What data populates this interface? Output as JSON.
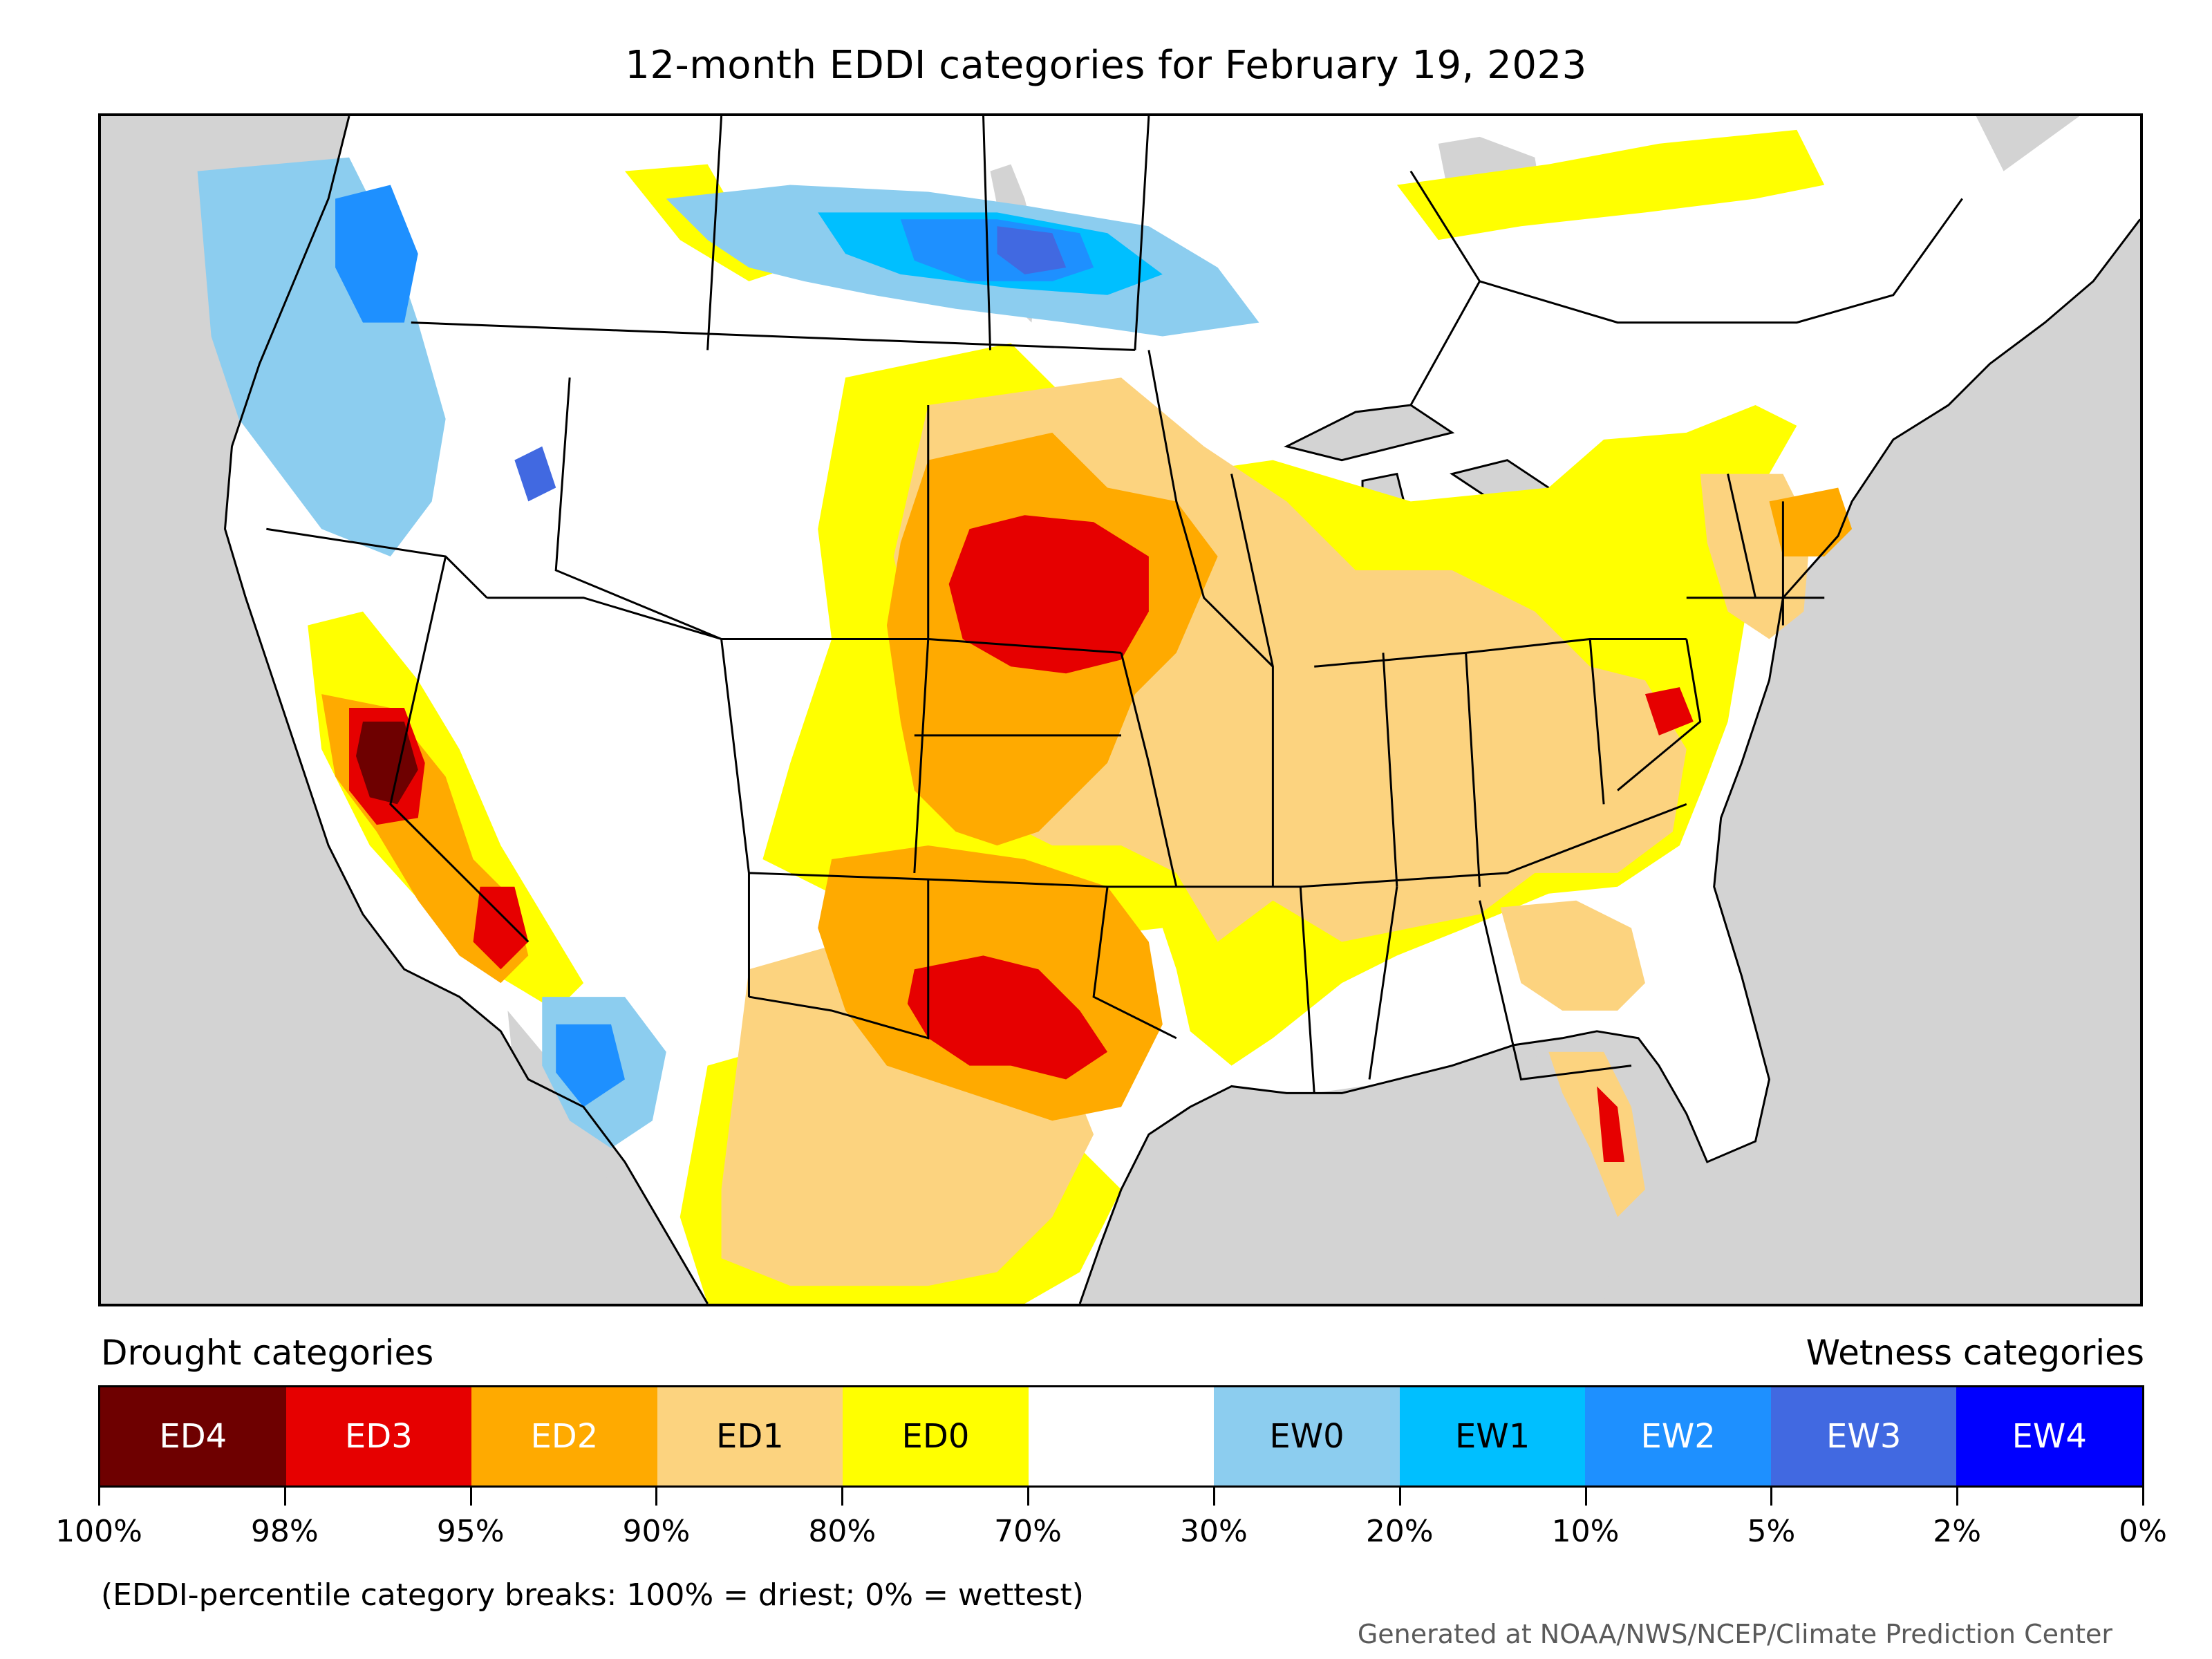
{
  "title": "12-month EDDI categories for February 19, 2023",
  "legend": {
    "drought_heading": "Drought categories",
    "wetness_heading": "Wetness categories",
    "categories": [
      {
        "label": "ED4",
        "color": "#6e0000",
        "text_color": "#ffffff"
      },
      {
        "label": "ED3",
        "color": "#e60000",
        "text_color": "#ffffff"
      },
      {
        "label": "ED2",
        "color": "#ffaa00",
        "text_color": "#ffffff"
      },
      {
        "label": "ED1",
        "color": "#fcd37f",
        "text_color": "#000000"
      },
      {
        "label": "ED0",
        "color": "#ffff00",
        "text_color": "#000000"
      },
      {
        "label": "",
        "color": "#ffffff",
        "text_color": "#000000"
      },
      {
        "label": "EW0",
        "color": "#8ccdef",
        "text_color": "#000000"
      },
      {
        "label": "EW1",
        "color": "#00bfff",
        "text_color": "#000000"
      },
      {
        "label": "EW2",
        "color": "#1e90ff",
        "text_color": "#ffffff"
      },
      {
        "label": "EW3",
        "color": "#4169e1",
        "text_color": "#ffffff"
      },
      {
        "label": "EW4",
        "color": "#0000ff",
        "text_color": "#ffffff"
      }
    ],
    "breaks": [
      "100%",
      "98%",
      "95%",
      "90%",
      "80%",
      "70%",
      "30%",
      "20%",
      "10%",
      "5%",
      "2%",
      "0%"
    ]
  },
  "footnote": "(EDDI-percentile category breaks: 100% = driest; 0% = wettest)",
  "credit": "Generated at NOAA/NWS/NCEP/Climate Prediction Center"
}
